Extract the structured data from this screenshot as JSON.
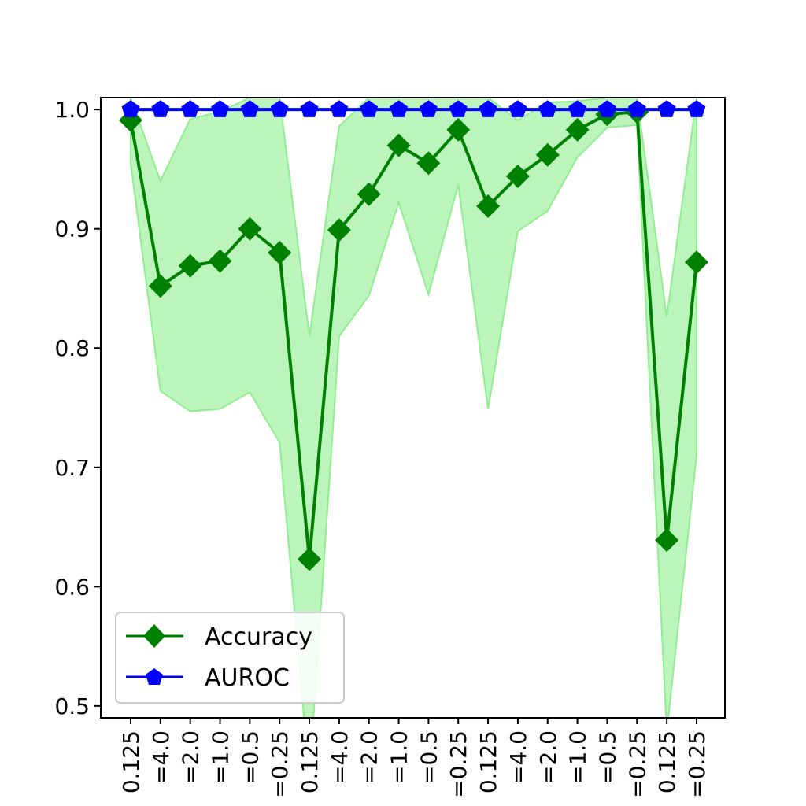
{
  "chart_data": {
    "type": "line",
    "title": "",
    "xlabel": "",
    "ylabel": "",
    "ylim": [
      0.49,
      1.01
    ],
    "yticks": [
      0.5,
      0.6,
      0.7,
      0.8,
      0.9,
      1.0
    ],
    "ytick_labels": [
      "0.5",
      "0.6",
      "0.7",
      "0.8",
      "0.9",
      "1.0"
    ],
    "categories": [
      "0.125",
      "=4.0",
      "=2.0",
      "=1.0",
      "=0.5",
      "=0.25",
      "0.125",
      "=4.0",
      "=2.0",
      "=1.0",
      "=0.5",
      "=0.25",
      "0.125",
      "=4.0",
      "=2.0",
      "=1.0",
      "=0.5",
      "=0.25",
      "0.125",
      "=0.25"
    ],
    "grid": false,
    "legend_position": "lower-left",
    "series": [
      {
        "name": "Accuracy",
        "color": "#008000",
        "marker": "diamond",
        "values": [
          0.991,
          0.852,
          0.869,
          0.873,
          0.9,
          0.88,
          0.623,
          0.899,
          0.929,
          0.97,
          0.955,
          0.983,
          0.919,
          0.944,
          0.962,
          0.983,
          0.996,
          0.998,
          0.639,
          0.872
        ],
        "band": {
          "color": "#90ee90",
          "lower": [
            0.955,
            0.764,
            0.747,
            0.749,
            0.763,
            0.721,
            0.44,
            0.81,
            0.844,
            0.922,
            0.845,
            0.937,
            0.749,
            0.898,
            0.915,
            0.96,
            0.985,
            0.987,
            0.478,
            0.71
          ],
          "upper": [
            1.01,
            0.94,
            0.992,
            0.998,
            1.01,
            1.01,
            0.81,
            0.986,
            1.01,
            1.01,
            1.01,
            1.01,
            1.01,
            0.991,
            1.006,
            1.007,
            1.01,
            1.01,
            0.826,
            1.01
          ]
        }
      },
      {
        "name": "AUROC",
        "color": "#0000ff",
        "marker": "pentagon",
        "values": [
          1.0,
          1.0,
          1.0,
          1.0,
          1.0,
          1.0,
          1.0,
          1.0,
          1.0,
          1.0,
          1.0,
          1.0,
          1.0,
          1.0,
          1.0,
          1.0,
          1.0,
          1.0,
          1.0,
          1.0
        ]
      }
    ]
  }
}
